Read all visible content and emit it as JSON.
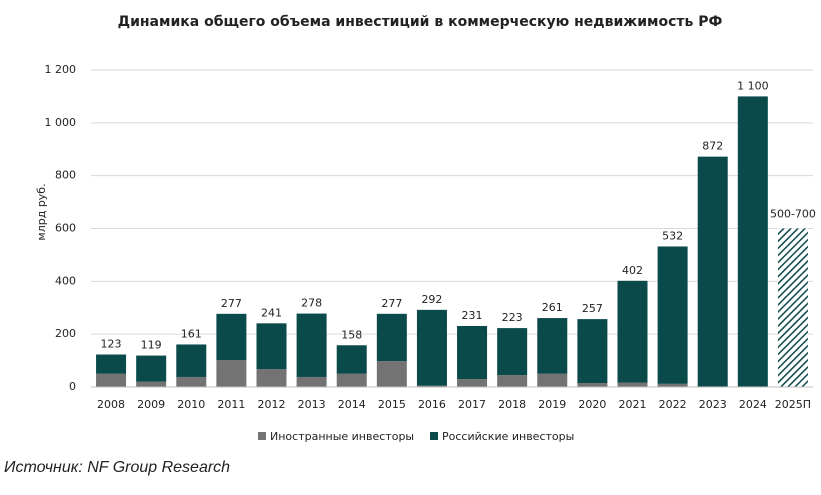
{
  "chart_data": {
    "type": "stacked_bar",
    "title": "Динамика общего объема инвестиций в коммерческую недвижимость РФ",
    "y_label": "млрд руб.",
    "source": "Источник: NF Group Research",
    "categories": [
      "2008",
      "2009",
      "2010",
      "2011",
      "2012",
      "2013",
      "2014",
      "2015",
      "2016",
      "2017",
      "2018",
      "2019",
      "2020",
      "2021",
      "2022",
      "2023",
      "2024",
      "2025П"
    ],
    "series": [
      {
        "name": "Иностранные инвесторы",
        "color": "#737373",
        "values": [
          50,
          20,
          38,
          102,
          68,
          38,
          50,
          98,
          5,
          30,
          45,
          50,
          15,
          17,
          12,
          2,
          2,
          null
        ]
      },
      {
        "name": "Российские инвесторы",
        "color": "#0b4a4a",
        "values": [
          73,
          99,
          123,
          175,
          173,
          240,
          108,
          179,
          287,
          201,
          178,
          211,
          242,
          385,
          520,
          870,
          1098,
          null
        ]
      }
    ],
    "totals": [
      123,
      119,
      161,
      277,
      241,
      278,
      158,
      277,
      292,
      231,
      223,
      261,
      257,
      402,
      532,
      872,
      1100,
      null
    ],
    "total_labels": [
      "123",
      "119",
      "161",
      "277",
      "241",
      "278",
      "158",
      "277",
      "292",
      "231",
      "223",
      "261",
      "257",
      "402",
      "532",
      "872",
      "1 100",
      null
    ],
    "forecast": {
      "value": 600,
      "label": "500-700",
      "color": "#0b4a4a"
    },
    "ylim": [
      0,
      1200
    ],
    "yticks": [
      0,
      200,
      400,
      600,
      800,
      {
        "value": 1000,
        "label": "1 000"
      },
      {
        "value": 1200,
        "label": "1 200"
      }
    ],
    "grid": true
  }
}
